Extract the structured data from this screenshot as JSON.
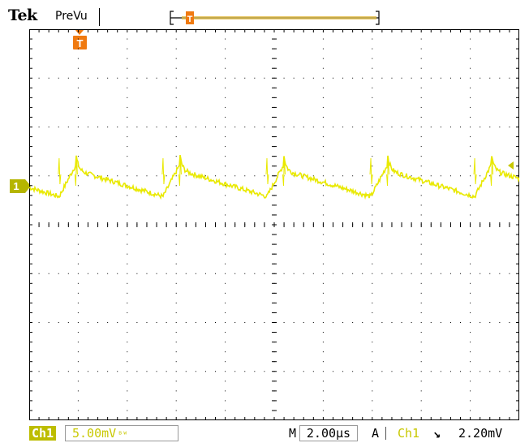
{
  "header": {
    "brand": "Tek",
    "acquisition_state": "PreVu"
  },
  "channel": {
    "badge": "Ch1",
    "ground_marker": "1",
    "scale": "5.00mV",
    "bandwidth_symbol": "ᴮᵂ",
    "color": "#e9e900",
    "marker_color": "#b5b500"
  },
  "timebase": {
    "label": "M",
    "value": "2.00µs"
  },
  "trigger": {
    "mode": "A",
    "source": "Ch1",
    "slope_symbol": "↘",
    "level": "2.20mV",
    "marker_label": "T",
    "marker_color": "#f07a10"
  },
  "graticule": {
    "divisions_x": 10,
    "divisions_y": 8,
    "grid_color": "#000000"
  },
  "waveform": {
    "period_divisions": 2.12,
    "baseline_mv": 0.0,
    "first_spike_x_div": 0.95,
    "spike_peak_mv": 2.9,
    "ramp_drop_mv": 1.9,
    "ramp_rise_mv": 1.5,
    "noise_mv": 0.25
  }
}
